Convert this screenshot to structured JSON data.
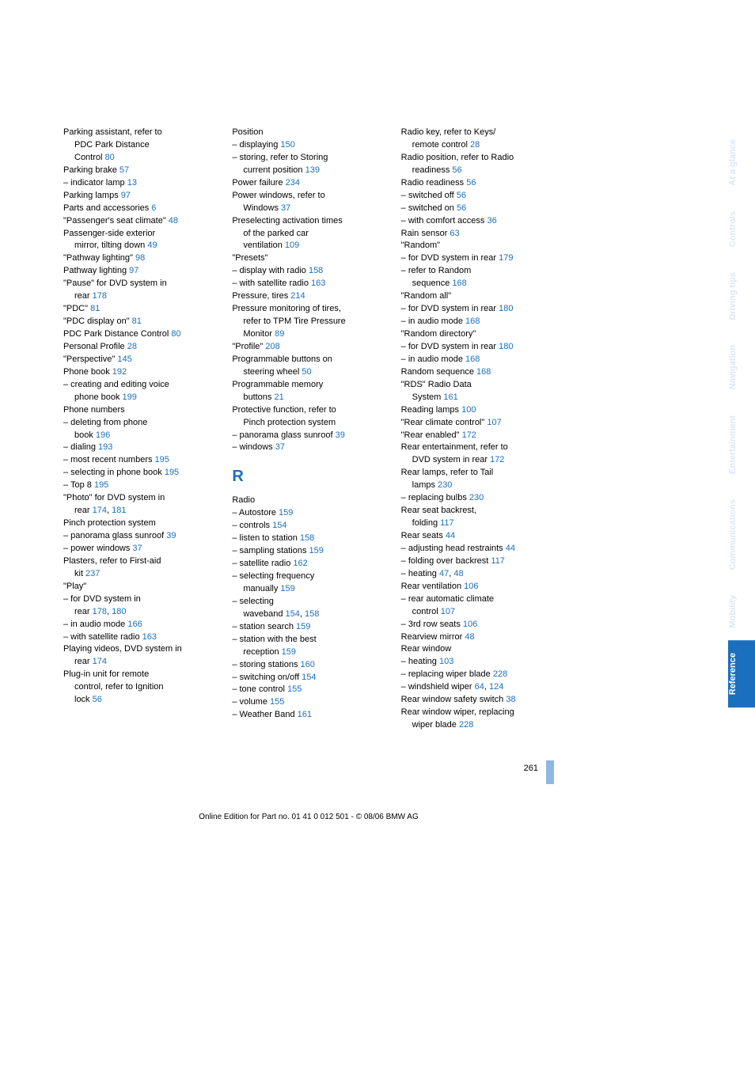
{
  "colors": {
    "link": "#1a6fbf",
    "tabGhost": "#dce7f2",
    "tabActive": "#1a6fbf"
  },
  "page_number": "261",
  "footer": "Online Edition for Part no. 01 41 0 012 501 - © 08/06 BMW AG",
  "tabs": [
    {
      "label": "At a glance",
      "active": false
    },
    {
      "label": "Controls",
      "active": false
    },
    {
      "label": "Driving tips",
      "active": false
    },
    {
      "label": "Navigation",
      "active": false
    },
    {
      "label": "Entertainment",
      "active": false
    },
    {
      "label": "Communications",
      "active": false
    },
    {
      "label": "Mobility",
      "active": false
    },
    {
      "label": "Reference",
      "active": true
    }
  ],
  "col1": [
    {
      "t": "Parking assistant, refer to",
      "indent": 0
    },
    {
      "t": "PDC Park Distance",
      "indent": 1
    },
    {
      "t": "Control",
      "p": " 80",
      "indent": 1
    },
    {
      "t": "Parking brake",
      "p": " 57",
      "indent": 0
    },
    {
      "t": "– indicator lamp",
      "p": " 13",
      "indent": 0
    },
    {
      "t": "Parking lamps",
      "p": " 97",
      "indent": 0
    },
    {
      "t": "Parts and accessories",
      "p": " 6",
      "indent": 0
    },
    {
      "t": "\"Passenger's seat climate\"",
      "p": " 48",
      "indent": 0
    },
    {
      "t": "Passenger-side exterior",
      "indent": 0
    },
    {
      "t": "mirror, tilting down",
      "p": " 49",
      "indent": 1
    },
    {
      "t": "\"Pathway lighting\"",
      "p": " 98",
      "indent": 0
    },
    {
      "t": "Pathway lighting",
      "p": " 97",
      "indent": 0
    },
    {
      "t": "\"Pause\" for DVD system in",
      "indent": 0
    },
    {
      "t": "rear",
      "p": " 178",
      "indent": 1
    },
    {
      "t": "\"PDC\"",
      "p": " 81",
      "indent": 0
    },
    {
      "t": "\"PDC display on\"",
      "p": " 81",
      "indent": 0
    },
    {
      "t": "PDC Park Distance Control",
      "p": " 80",
      "indent": 0
    },
    {
      "t": "Personal Profile",
      "p": " 28",
      "indent": 0
    },
    {
      "t": "\"Perspective\"",
      "p": " 145",
      "indent": 0
    },
    {
      "t": "Phone book",
      "p": " 192",
      "indent": 0
    },
    {
      "t": "– creating and editing voice",
      "indent": 0
    },
    {
      "t": "phone book",
      "p": " 199",
      "indent": 1
    },
    {
      "t": "Phone numbers",
      "indent": 0
    },
    {
      "t": "– deleting from phone",
      "indent": 0
    },
    {
      "t": "book",
      "p": " 196",
      "indent": 1
    },
    {
      "t": "– dialing",
      "p": " 193",
      "indent": 0
    },
    {
      "t": "– most recent numbers",
      "p": " 195",
      "indent": 0
    },
    {
      "t": "– selecting in phone book",
      "p": " 195",
      "indent": 0
    },
    {
      "t": "– Top 8",
      "p": " 195",
      "indent": 0
    },
    {
      "t": "\"Photo\" for DVD system in",
      "indent": 0
    },
    {
      "t": "rear",
      "p": " 174, 181",
      "indent": 1
    },
    {
      "t": "Pinch protection system",
      "indent": 0
    },
    {
      "t": "– panorama glass sunroof",
      "p": " 39",
      "indent": 0
    },
    {
      "t": "– power windows",
      "p": " 37",
      "indent": 0
    },
    {
      "t": "Plasters, refer to First-aid",
      "indent": 0
    },
    {
      "t": "kit",
      "p": " 237",
      "indent": 1
    },
    {
      "t": "\"Play\"",
      "indent": 0
    },
    {
      "t": "– for DVD system in",
      "indent": 0
    },
    {
      "t": "rear",
      "p": " 178, 180",
      "indent": 1
    },
    {
      "t": "– in audio mode",
      "p": " 166",
      "indent": 0
    },
    {
      "t": "– with satellite radio",
      "p": " 163",
      "indent": 0
    },
    {
      "t": "Playing videos, DVD system in",
      "indent": 0
    },
    {
      "t": "rear",
      "p": " 174",
      "indent": 1
    },
    {
      "t": "Plug-in unit for remote",
      "indent": 0
    },
    {
      "t": "control, refer to Ignition",
      "indent": 1
    },
    {
      "t": "lock",
      "p": " 56",
      "indent": 1
    }
  ],
  "col2": [
    {
      "t": "Position",
      "indent": 0
    },
    {
      "t": "– displaying",
      "p": " 150",
      "indent": 0
    },
    {
      "t": "– storing, refer to Storing",
      "indent": 0
    },
    {
      "t": "current position",
      "p": " 139",
      "indent": 1
    },
    {
      "t": "Power failure",
      "p": " 234",
      "indent": 0
    },
    {
      "t": "Power windows, refer to",
      "indent": 0
    },
    {
      "t": "Windows",
      "p": " 37",
      "indent": 1
    },
    {
      "t": "Preselecting activation times",
      "indent": 0
    },
    {
      "t": "of the parked car",
      "indent": 1
    },
    {
      "t": "ventilation",
      "p": " 109",
      "indent": 1
    },
    {
      "t": "\"Presets\"",
      "indent": 0
    },
    {
      "t": "– display with radio",
      "p": " 158",
      "indent": 0
    },
    {
      "t": "– with satellite radio",
      "p": " 163",
      "indent": 0
    },
    {
      "t": "Pressure, tires",
      "p": " 214",
      "indent": 0
    },
    {
      "t": "Pressure monitoring of tires,",
      "indent": 0
    },
    {
      "t": "refer to TPM Tire Pressure",
      "indent": 1
    },
    {
      "t": "Monitor",
      "p": " 89",
      "indent": 1
    },
    {
      "t": "\"Profile\"",
      "p": " 208",
      "indent": 0
    },
    {
      "t": "Programmable buttons on",
      "indent": 0
    },
    {
      "t": "steering wheel",
      "p": " 50",
      "indent": 1
    },
    {
      "t": "Programmable memory",
      "indent": 0
    },
    {
      "t": "buttons",
      "p": " 21",
      "indent": 1
    },
    {
      "t": "Protective function, refer to",
      "indent": 0
    },
    {
      "t": "Pinch protection system",
      "indent": 1
    },
    {
      "t": "– panorama glass sunroof",
      "p": " 39",
      "indent": 0
    },
    {
      "t": "– windows",
      "p": " 37",
      "indent": 0
    },
    {
      "heading": "R"
    },
    {
      "t": "Radio",
      "indent": 0
    },
    {
      "t": "– Autostore",
      "p": " 159",
      "indent": 0
    },
    {
      "t": "– controls",
      "p": " 154",
      "indent": 0
    },
    {
      "t": "– listen to station",
      "p": " 158",
      "indent": 0
    },
    {
      "t": "– sampling stations",
      "p": " 159",
      "indent": 0
    },
    {
      "t": "– satellite radio",
      "p": " 162",
      "indent": 0
    },
    {
      "t": "– selecting frequency",
      "indent": 0
    },
    {
      "t": "manually",
      "p": " 159",
      "indent": 1
    },
    {
      "t": "– selecting",
      "indent": 0
    },
    {
      "t": "waveband",
      "p": " 154, 158",
      "indent": 1
    },
    {
      "t": "– station search",
      "p": " 159",
      "indent": 0
    },
    {
      "t": "– station with the best",
      "indent": 0
    },
    {
      "t": "reception",
      "p": " 159",
      "indent": 1
    },
    {
      "t": "– storing stations",
      "p": " 160",
      "indent": 0
    },
    {
      "t": "– switching on/off",
      "p": " 154",
      "indent": 0
    },
    {
      "t": "– tone control",
      "p": " 155",
      "indent": 0
    },
    {
      "t": "– volume",
      "p": " 155",
      "indent": 0
    },
    {
      "t": "– Weather Band",
      "p": " 161",
      "indent": 0
    }
  ],
  "col3": [
    {
      "t": "Radio key, refer to Keys/",
      "indent": 0
    },
    {
      "t": "remote control",
      "p": " 28",
      "indent": 1
    },
    {
      "t": "Radio position, refer to Radio",
      "indent": 0
    },
    {
      "t": "readiness",
      "p": " 56",
      "indent": 1
    },
    {
      "t": "Radio readiness",
      "p": " 56",
      "indent": 0
    },
    {
      "t": "– switched off",
      "p": " 56",
      "indent": 0
    },
    {
      "t": "– switched on",
      "p": " 56",
      "indent": 0
    },
    {
      "t": "– with comfort access",
      "p": " 36",
      "indent": 0
    },
    {
      "t": "Rain sensor",
      "p": " 63",
      "indent": 0
    },
    {
      "t": "\"Random\"",
      "indent": 0
    },
    {
      "t": "– for DVD system in rear",
      "p": " 179",
      "indent": 0
    },
    {
      "t": "– refer to Random",
      "indent": 0
    },
    {
      "t": "sequence",
      "p": " 168",
      "indent": 1
    },
    {
      "t": "\"Random all\"",
      "indent": 0
    },
    {
      "t": "– for DVD system in rear",
      "p": " 180",
      "indent": 0
    },
    {
      "t": "– in audio mode",
      "p": " 168",
      "indent": 0
    },
    {
      "t": "\"Random directory\"",
      "indent": 0
    },
    {
      "t": "– for DVD system in rear",
      "p": " 180",
      "indent": 0
    },
    {
      "t": "– in audio mode",
      "p": " 168",
      "indent": 0
    },
    {
      "t": "Random sequence",
      "p": " 168",
      "indent": 0
    },
    {
      "t": "\"RDS\" Radio Data",
      "indent": 0
    },
    {
      "t": "System",
      "p": " 161",
      "indent": 1
    },
    {
      "t": "Reading lamps",
      "p": " 100",
      "indent": 0
    },
    {
      "t": "\"Rear climate control\"",
      "p": " 107",
      "indent": 0
    },
    {
      "t": "\"Rear enabled\"",
      "p": " 172",
      "indent": 0
    },
    {
      "t": "Rear entertainment, refer to",
      "indent": 0
    },
    {
      "t": "DVD system in rear",
      "p": " 172",
      "indent": 1
    },
    {
      "t": "Rear lamps, refer to Tail",
      "indent": 0
    },
    {
      "t": "lamps",
      "p": " 230",
      "indent": 1
    },
    {
      "t": "– replacing bulbs",
      "p": " 230",
      "indent": 0
    },
    {
      "t": "Rear seat backrest,",
      "indent": 0
    },
    {
      "t": "folding",
      "p": " 117",
      "indent": 1
    },
    {
      "t": "Rear seats",
      "p": " 44",
      "indent": 0
    },
    {
      "t": "– adjusting head restraints",
      "p": " 44",
      "indent": 0
    },
    {
      "t": "– folding over backrest",
      "p": " 117",
      "indent": 0
    },
    {
      "t": "– heating",
      "p": " 47, 48",
      "indent": 0
    },
    {
      "t": "Rear ventilation",
      "p": " 106",
      "indent": 0
    },
    {
      "t": "– rear automatic climate",
      "indent": 0
    },
    {
      "t": "control",
      "p": " 107",
      "indent": 1
    },
    {
      "t": "– 3rd row seats",
      "p": " 106",
      "indent": 0
    },
    {
      "t": "Rearview mirror",
      "p": " 48",
      "indent": 0
    },
    {
      "t": "Rear window",
      "indent": 0
    },
    {
      "t": "– heating",
      "p": " 103",
      "indent": 0
    },
    {
      "t": "– replacing wiper blade",
      "p": " 228",
      "indent": 0
    },
    {
      "t": "– windshield wiper",
      "p": " 64, 124",
      "indent": 0
    },
    {
      "t": "Rear window safety switch",
      "p": " 38",
      "indent": 0
    },
    {
      "t": "Rear window wiper, replacing",
      "indent": 0
    },
    {
      "t": "wiper blade",
      "p": " 228",
      "indent": 1
    }
  ]
}
